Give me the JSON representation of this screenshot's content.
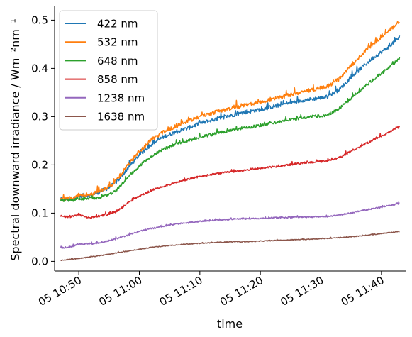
{
  "chart_data": {
    "type": "line",
    "xlabel": "time",
    "ylabel": "Spectral downward irradiance / Wm⁻²nm⁻¹",
    "x_range": [
      "05 10:46",
      "05 11:44"
    ],
    "ylim": [
      -0.02,
      0.53
    ],
    "grid": false,
    "legend_position": "top-left",
    "x_ticks": [
      {
        "label": "05 10:50",
        "time": "10:50"
      },
      {
        "label": "05 11:00",
        "time": "11:00"
      },
      {
        "label": "05 11:10",
        "time": "11:10"
      },
      {
        "label": "05 11:20",
        "time": "11:20"
      },
      {
        "label": "05 11:30",
        "time": "11:30"
      },
      {
        "label": "05 11:40",
        "time": "11:40"
      }
    ],
    "y_ticks": [
      {
        "label": "0.0",
        "value": 0.0
      },
      {
        "label": "0.1",
        "value": 0.1
      },
      {
        "label": "0.2",
        "value": 0.2
      },
      {
        "label": "0.3",
        "value": 0.3
      },
      {
        "label": "0.4",
        "value": 0.4
      },
      {
        "label": "0.5",
        "value": 0.5
      }
    ],
    "series": [
      {
        "name": "422 nm",
        "color": "#1f77b4",
        "noise": 0.004,
        "points": [
          [
            "10:47",
            0.128
          ],
          [
            "10:49",
            0.13
          ],
          [
            "10:50",
            0.136
          ],
          [
            "10:52",
            0.137
          ],
          [
            "10:53",
            0.142
          ],
          [
            "10:55",
            0.153
          ],
          [
            "10:56",
            0.162
          ],
          [
            "10:57",
            0.175
          ],
          [
            "10:58",
            0.192
          ],
          [
            "11:00",
            0.22
          ],
          [
            "11:02",
            0.243
          ],
          [
            "11:04",
            0.258
          ],
          [
            "11:06",
            0.268
          ],
          [
            "11:08",
            0.276
          ],
          [
            "11:10",
            0.286
          ],
          [
            "11:13",
            0.296
          ],
          [
            "11:16",
            0.305
          ],
          [
            "11:20",
            0.315
          ],
          [
            "11:24",
            0.326
          ],
          [
            "11:27",
            0.334
          ],
          [
            "11:29",
            0.337
          ],
          [
            "11:31",
            0.341
          ],
          [
            "11:33",
            0.356
          ],
          [
            "11:35",
            0.381
          ],
          [
            "11:37",
            0.405
          ],
          [
            "11:39",
            0.425
          ],
          [
            "11:41",
            0.443
          ],
          [
            "11:43",
            0.465
          ]
        ]
      },
      {
        "name": "532 nm",
        "color": "#ff7f0e",
        "noise": 0.004,
        "points": [
          [
            "10:47",
            0.128
          ],
          [
            "10:49",
            0.131
          ],
          [
            "10:50",
            0.138
          ],
          [
            "10:52",
            0.138
          ],
          [
            "10:53",
            0.144
          ],
          [
            "10:55",
            0.155
          ],
          [
            "10:56",
            0.165
          ],
          [
            "10:57",
            0.18
          ],
          [
            "10:58",
            0.198
          ],
          [
            "11:00",
            0.228
          ],
          [
            "11:02",
            0.252
          ],
          [
            "11:04",
            0.268
          ],
          [
            "11:06",
            0.28
          ],
          [
            "11:08",
            0.29
          ],
          [
            "11:10",
            0.3
          ],
          [
            "11:13",
            0.311
          ],
          [
            "11:16",
            0.32
          ],
          [
            "11:20",
            0.33
          ],
          [
            "11:24",
            0.342
          ],
          [
            "11:27",
            0.352
          ],
          [
            "11:29",
            0.357
          ],
          [
            "11:31",
            0.362
          ],
          [
            "11:33",
            0.378
          ],
          [
            "11:35",
            0.405
          ],
          [
            "11:37",
            0.432
          ],
          [
            "11:39",
            0.455
          ],
          [
            "11:41",
            0.475
          ],
          [
            "11:43",
            0.498
          ]
        ]
      },
      {
        "name": "648 nm",
        "color": "#2ca02c",
        "noise": 0.003,
        "points": [
          [
            "10:47",
            0.127
          ],
          [
            "10:49",
            0.126
          ],
          [
            "10:50",
            0.13
          ],
          [
            "10:52",
            0.13
          ],
          [
            "10:53",
            0.132
          ],
          [
            "10:55",
            0.138
          ],
          [
            "10:56",
            0.145
          ],
          [
            "10:57",
            0.158
          ],
          [
            "10:58",
            0.172
          ],
          [
            "11:00",
            0.198
          ],
          [
            "11:02",
            0.218
          ],
          [
            "11:04",
            0.233
          ],
          [
            "11:06",
            0.242
          ],
          [
            "11:08",
            0.25
          ],
          [
            "11:10",
            0.257
          ],
          [
            "11:13",
            0.266
          ],
          [
            "11:16",
            0.273
          ],
          [
            "11:20",
            0.282
          ],
          [
            "11:24",
            0.291
          ],
          [
            "11:27",
            0.298
          ],
          [
            "11:29",
            0.301
          ],
          [
            "11:31",
            0.303
          ],
          [
            "11:33",
            0.316
          ],
          [
            "11:35",
            0.338
          ],
          [
            "11:37",
            0.36
          ],
          [
            "11:39",
            0.38
          ],
          [
            "11:41",
            0.399
          ],
          [
            "11:43",
            0.42
          ]
        ]
      },
      {
        "name": "858 nm",
        "color": "#d62728",
        "noise": 0.002,
        "points": [
          [
            "10:47",
            0.094
          ],
          [
            "10:48",
            0.092
          ],
          [
            "10:49",
            0.093
          ],
          [
            "10:50",
            0.098
          ],
          [
            "10:51",
            0.092
          ],
          [
            "10:52",
            0.091
          ],
          [
            "10:53",
            0.093
          ],
          [
            "10:55",
            0.098
          ],
          [
            "10:56",
            0.102
          ],
          [
            "10:57",
            0.11
          ],
          [
            "10:58",
            0.12
          ],
          [
            "11:00",
            0.135
          ],
          [
            "11:02",
            0.147
          ],
          [
            "11:04",
            0.156
          ],
          [
            "11:06",
            0.163
          ],
          [
            "11:08",
            0.17
          ],
          [
            "11:10",
            0.176
          ],
          [
            "11:13",
            0.182
          ],
          [
            "11:16",
            0.187
          ],
          [
            "11:20",
            0.193
          ],
          [
            "11:24",
            0.199
          ],
          [
            "11:27",
            0.204
          ],
          [
            "11:29",
            0.206
          ],
          [
            "11:31",
            0.208
          ],
          [
            "11:33",
            0.215
          ],
          [
            "11:35",
            0.228
          ],
          [
            "11:37",
            0.241
          ],
          [
            "11:39",
            0.254
          ],
          [
            "11:41",
            0.266
          ],
          [
            "11:43",
            0.279
          ]
        ]
      },
      {
        "name": "1238 nm",
        "color": "#9467bd",
        "noise": 0.0015,
        "points": [
          [
            "10:47",
            0.028
          ],
          [
            "10:48",
            0.029
          ],
          [
            "10:49",
            0.031
          ],
          [
            "10:50",
            0.036
          ],
          [
            "10:52",
            0.036
          ],
          [
            "10:54",
            0.04
          ],
          [
            "10:56",
            0.046
          ],
          [
            "10:58",
            0.054
          ],
          [
            "11:00",
            0.062
          ],
          [
            "11:02",
            0.068
          ],
          [
            "11:04",
            0.073
          ],
          [
            "11:06",
            0.077
          ],
          [
            "11:08",
            0.08
          ],
          [
            "11:10",
            0.083
          ],
          [
            "11:13",
            0.086
          ],
          [
            "11:16",
            0.088
          ],
          [
            "11:20",
            0.089
          ],
          [
            "11:24",
            0.091
          ],
          [
            "11:28",
            0.092
          ],
          [
            "11:31",
            0.093
          ],
          [
            "11:33",
            0.096
          ],
          [
            "11:35",
            0.1
          ],
          [
            "11:37",
            0.106
          ],
          [
            "11:39",
            0.11
          ],
          [
            "11:41",
            0.115
          ],
          [
            "11:43",
            0.12
          ]
        ]
      },
      {
        "name": "1638 nm",
        "color": "#8c564b",
        "noise": 0.0008,
        "points": [
          [
            "10:47",
            0.002
          ],
          [
            "10:50",
            0.006
          ],
          [
            "10:53",
            0.011
          ],
          [
            "10:56",
            0.017
          ],
          [
            "10:59",
            0.023
          ],
          [
            "11:02",
            0.029
          ],
          [
            "11:05",
            0.033
          ],
          [
            "11:08",
            0.036
          ],
          [
            "11:11",
            0.038
          ],
          [
            "11:14",
            0.04
          ],
          [
            "11:18",
            0.041
          ],
          [
            "11:22",
            0.043
          ],
          [
            "11:26",
            0.045
          ],
          [
            "11:30",
            0.047
          ],
          [
            "11:33",
            0.049
          ],
          [
            "11:36",
            0.052
          ],
          [
            "11:39",
            0.056
          ],
          [
            "11:41",
            0.059
          ],
          [
            "11:43",
            0.062
          ]
        ]
      }
    ]
  }
}
